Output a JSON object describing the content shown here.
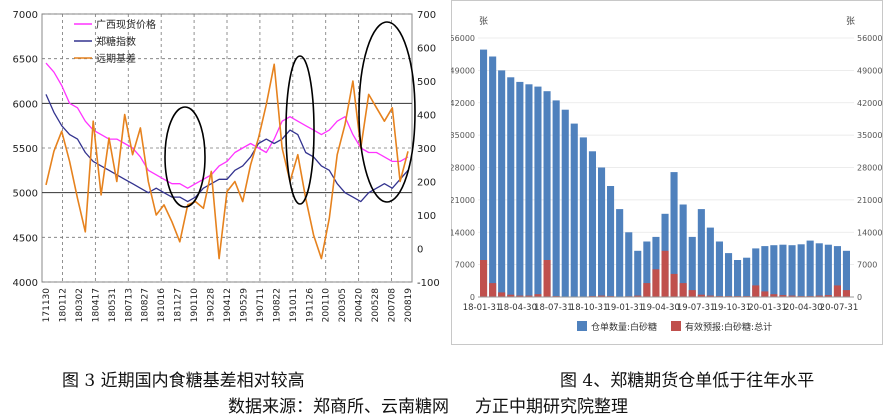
{
  "charts": [
    {
      "chart_data": {
        "type": "line",
        "title": "",
        "x_ticks": [
          "171130",
          "180112",
          "180302",
          "180417",
          "180531",
          "180713",
          "180827",
          "181016",
          "181127",
          "190110",
          "190228",
          "190412",
          "190529",
          "190711",
          "190822",
          "191011",
          "191126",
          "200110",
          "200305",
          "200420",
          "200528",
          "200708",
          "200819"
        ],
        "yleft_ticks": [
          "4000",
          "4500",
          "5000",
          "5500",
          "6000",
          "6500",
          "7000"
        ],
        "yright_ticks": [
          "-100",
          "0",
          "100",
          "200",
          "300",
          "400",
          "500",
          "600",
          "700"
        ],
        "yleft_range": [
          4000,
          7000
        ],
        "yright_range": [
          -100,
          700
        ],
        "grid": "horizontal dashed + vertical dashed",
        "legend_position": "top-left",
        "series": [
          {
            "name": "广西现货价格",
            "axis": "left",
            "color": "#ff33ff",
            "values": [
              6450,
              6350,
              6200,
              6000,
              5950,
              5800,
              5700,
              5650,
              5600,
              5600,
              5550,
              5500,
              5400,
              5250,
              5200,
              5150,
              5100,
              5100,
              5050,
              5100,
              5150,
              5200,
              5300,
              5350,
              5450,
              5500,
              5550,
              5500,
              5450,
              5600,
              5800,
              5850,
              5800,
              5750,
              5700,
              5650,
              5700,
              5800,
              5850,
              5650,
              5500,
              5450,
              5450,
              5400,
              5350,
              5350,
              5400
            ]
          },
          {
            "name": "郑糖指数",
            "axis": "left",
            "color": "#33338f",
            "values": [
              6100,
              5900,
              5750,
              5650,
              5600,
              5450,
              5350,
              5300,
              5250,
              5200,
              5150,
              5100,
              5050,
              5000,
              5050,
              5000,
              4950,
              4950,
              4900,
              4950,
              5050,
              5100,
              5150,
              5150,
              5250,
              5300,
              5400,
              5550,
              5600,
              5550,
              5600,
              5700,
              5650,
              5450,
              5400,
              5300,
              5250,
              5100,
              5000,
              4950,
              4900,
              5000,
              5050,
              5100,
              5050,
              5150,
              5250
            ]
          },
          {
            "name": "远期基差",
            "axis": "right",
            "color": "#e6821e",
            "values": [
              190,
              290,
              350,
              260,
              150,
              50,
              380,
              160,
              330,
              200,
              400,
              280,
              360,
              200,
              100,
              130,
              80,
              20,
              130,
              140,
              120,
              230,
              -30,
              170,
              200,
              140,
              250,
              330,
              430,
              550,
              300,
              200,
              280,
              150,
              40,
              -30,
              90,
              280,
              370,
              500,
              300,
              460,
              420,
              380,
              420,
              200,
              290
            ]
          }
        ],
        "annotations": [
          "ellipse around 181127 peak",
          "ellipse around 191011 peak",
          "ellipse around 200528-200708 peak"
        ]
      }
    },
    {
      "chart_data": {
        "type": "bar",
        "title": "",
        "unit_left": "张",
        "unit_right": "张",
        "x_ticks": [
          "18-01-31",
          "18-04-30",
          "18-07-31",
          "18-10-31",
          "19-01-31",
          "19-04-30",
          "19-07-31",
          "19-10-31",
          "20-01-31",
          "20-04-30",
          "20-07-31"
        ],
        "y_ticks": [
          "0",
          "7000",
          "14000",
          "21000",
          "28000",
          "35000",
          "42000",
          "49000",
          "56000"
        ],
        "ylim": [
          0,
          56000
        ],
        "legend_position": "bottom",
        "series": [
          {
            "name": "仓单数量:白砂糖",
            "color": "#4f81bd",
            "values": [
              53500,
              52000,
              49000,
              47500,
              46500,
              46000,
              45500,
              44500,
              42500,
              40500,
              37500,
              34500,
              31500,
              28000,
              24000,
              19000,
              14000,
              10000,
              12000,
              13000,
              18000,
              27000,
              20000,
              13000,
              19000,
              15000,
              12000,
              9500,
              8000,
              8500,
              10500,
              11000,
              11200,
              11300,
              11200,
              11400,
              12200,
              11600,
              11300,
              11000,
              10000
            ]
          },
          {
            "name": "有效预报:白砂糖:总计",
            "color": "#c0504d",
            "values": [
              8000,
              3000,
              1000,
              500,
              300,
              300,
              600,
              8000,
              200,
              100,
              100,
              100,
              200,
              300,
              200,
              100,
              150,
              300,
              3000,
              6000,
              10000,
              5000,
              3000,
              1500,
              500,
              300,
              200,
              200,
              200,
              200,
              2500,
              1200,
              600,
              400,
              300,
              200,
              200,
              300,
              400,
              2500,
              1500
            ]
          }
        ]
      }
    }
  ],
  "captions": {
    "left": "图 3  近期国内食糖基差相对较高",
    "right": "图 4、郑糖期货仓单低于往年水平",
    "source": "数据来源：郑商所、云南糖网",
    "org": "方正中期研究院整理"
  }
}
